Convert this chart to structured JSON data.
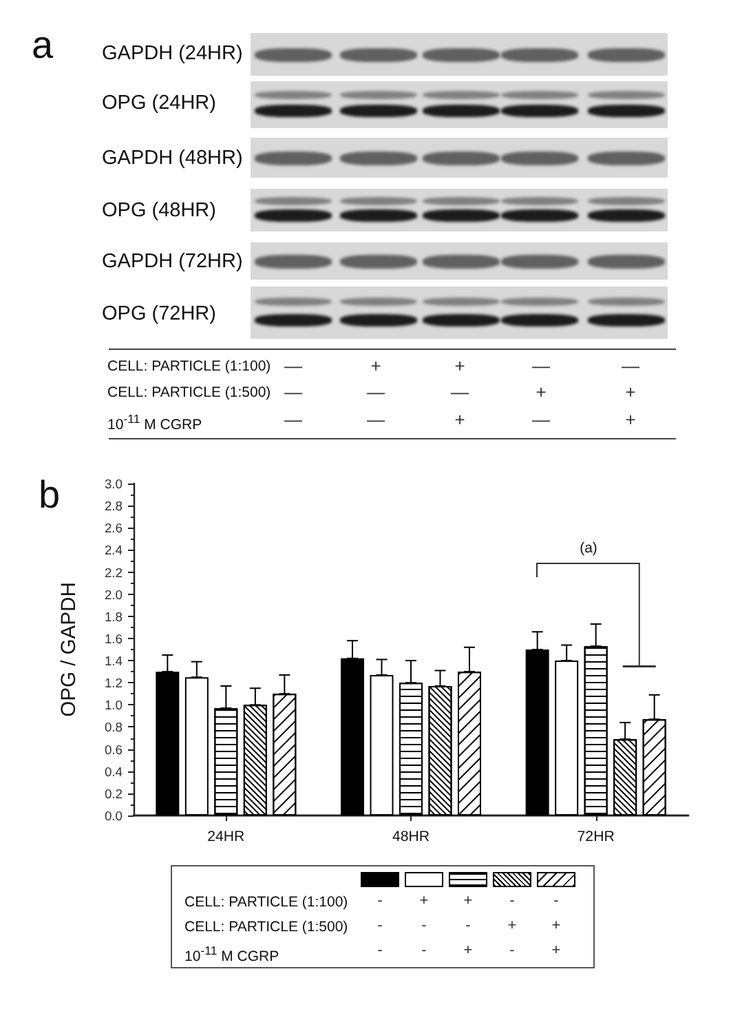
{
  "chart_data": [
    {
      "type": "other",
      "title": "a",
      "annotations": [
        "GAPDH (24HR)",
        "OPG (24HR)",
        "GAPDH (48HR)",
        "OPG (48HR)",
        "GAPDH (72HR)",
        "OPG (72HR)",
        "CELL: PARTICLE (1:100)",
        "— + + — —",
        "CELL: PARTICLE (1:500)",
        "— — — + +",
        "10$^{-11}$ M CGRP",
        "— — + — +"
      ]
    },
    {
      "type": "bar",
      "title": "b",
      "categories": [
        "24HR",
        "48HR",
        "72HR"
      ],
      "ylabel": "OPG / GAPDH",
      "ylim": [
        0,
        3
      ],
      "yticks": [
        {
          "value": 0,
          "label": "0.0"
        },
        0.2,
        0.4,
        0.6,
        0.8,
        {
          "value": 1,
          "label": "1.0"
        },
        1.2,
        1.4,
        1.6,
        1.8,
        {
          "value": 2,
          "label": "2.0"
        },
        2.2,
        2.4,
        2.6,
        2.8,
        {
          "value": 3,
          "label": "3.0"
        }
      ],
      "series": [
        {
          "color": "#000000",
          "values": [
            1.3,
            1.42,
            1.5
          ],
          "errors": [
            [
              1.3,
              1.45
            ],
            [
              1.42,
              1.58
            ],
            [
              1.5,
              1.66
            ]
          ]
        },
        {
          "color": "#ffffff",
          "values": [
            1.25,
            1.27,
            1.4
          ],
          "errors": [
            [
              1.25,
              1.39
            ],
            [
              1.27,
              1.41
            ],
            [
              1.4,
              1.54
            ]
          ]
        },
        {
          "color": "#ffffff",
          "values": [
            0.97,
            1.2,
            1.53
          ],
          "errors": [
            [
              0.97,
              1.17
            ],
            [
              1.2,
              1.4
            ],
            [
              1.53,
              1.73
            ]
          ]
        },
        {
          "color": "#ffffff",
          "values": [
            1.0,
            1.17,
            0.69
          ],
          "errors": [
            [
              1.0,
              1.15
            ],
            [
              1.17,
              1.31
            ],
            [
              0.69,
              0.84
            ]
          ]
        },
        {
          "color": "#ffffff",
          "values": [
            1.1,
            1.3,
            0.87
          ],
          "errors": [
            [
              1.1,
              1.27
            ],
            [
              1.3,
              1.52
            ],
            [
              0.87,
              1.09
            ]
          ]
        }
      ],
      "annotations": [
        "(a)",
        "CELL: PARTICLE (1:100)",
        "- + + - -",
        "CELL: PARTICLE (1:500)",
        "- - - + +",
        "10$^{-11}$ M CGRP",
        "- - + - +"
      ]
    }
  ]
}
